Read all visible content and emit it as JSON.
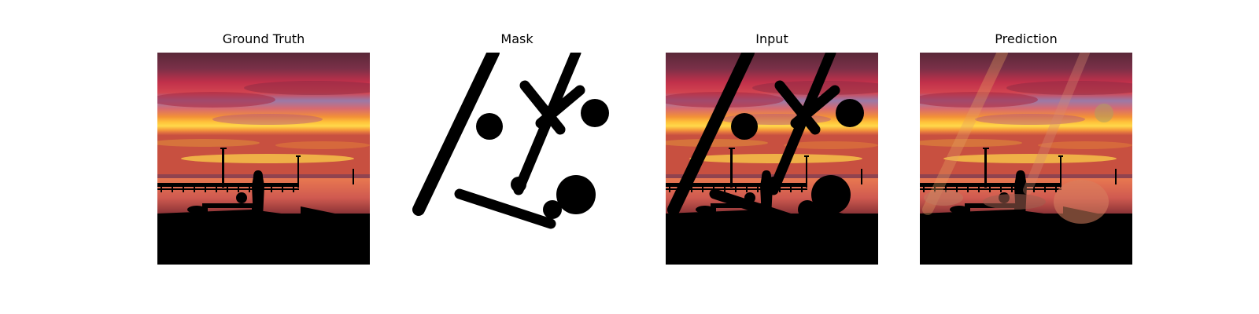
{
  "panels": [
    {
      "id": "ground-truth",
      "title": "Ground Truth"
    },
    {
      "id": "mask",
      "title": "Mask"
    },
    {
      "id": "input",
      "title": "Input"
    },
    {
      "id": "prediction",
      "title": "Prediction"
    }
  ],
  "colors": {
    "sky_top": "#5a2a3a",
    "sky_red": "#c8384a",
    "sky_blue": "#8a7ab8",
    "sky_orange": "#f08a2a",
    "sky_yellow": "#ffd24a",
    "water": "#e06a5a",
    "silhouette": "#000000",
    "mask_bg": "#ffffff",
    "mask_stroke": "#000000"
  }
}
